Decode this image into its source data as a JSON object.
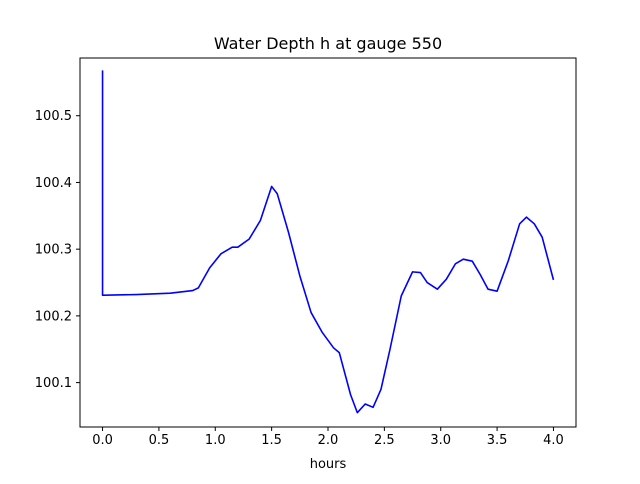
{
  "chart_data": {
    "type": "line",
    "title": "Water Depth h at gauge 550",
    "xlabel": "hours",
    "ylabel": "",
    "xlim": [
      -0.2,
      4.2
    ],
    "ylim": [
      100.0335,
      100.5865
    ],
    "xticks": [
      0.0,
      0.5,
      1.0,
      1.5,
      2.0,
      2.5,
      3.0,
      3.5,
      4.0
    ],
    "xtick_labels": [
      "0.0",
      "0.5",
      "1.0",
      "1.5",
      "2.0",
      "2.5",
      "3.0",
      "3.5",
      "4.0"
    ],
    "yticks": [
      100.1,
      100.2,
      100.3,
      100.4,
      100.5
    ],
    "ytick_labels": [
      "100.1",
      "100.2",
      "100.3",
      "100.4",
      "100.5"
    ],
    "grid": false,
    "colors": {
      "line": "#0000ff",
      "axes": "#000000",
      "background": "#ffffff"
    },
    "series": [
      {
        "x": [
          0.0,
          0.0,
          0.02,
          0.3,
          0.6,
          0.8,
          0.85,
          0.95,
          1.05,
          1.15,
          1.2,
          1.3,
          1.4,
          1.5,
          1.55,
          1.65,
          1.75,
          1.85,
          1.95,
          2.05,
          2.1,
          2.2,
          2.26,
          2.33,
          2.4,
          2.47,
          2.55,
          2.65,
          2.75,
          2.82,
          2.88,
          2.97,
          3.05,
          3.13,
          3.2,
          3.28,
          3.35,
          3.42,
          3.5,
          3.6,
          3.7,
          3.76,
          3.83,
          3.9,
          4.0
        ],
        "y": [
          100.568,
          100.231,
          100.231,
          100.232,
          100.234,
          100.238,
          100.242,
          100.272,
          100.293,
          100.303,
          100.303,
          100.315,
          100.343,
          100.394,
          100.383,
          100.325,
          100.26,
          100.205,
          100.175,
          100.152,
          100.145,
          100.082,
          100.055,
          100.068,
          100.063,
          100.09,
          100.15,
          100.23,
          100.266,
          100.265,
          100.25,
          100.24,
          100.255,
          100.278,
          100.285,
          100.282,
          100.262,
          100.24,
          100.237,
          100.283,
          100.338,
          100.348,
          100.338,
          100.318,
          100.254
        ]
      }
    ]
  }
}
